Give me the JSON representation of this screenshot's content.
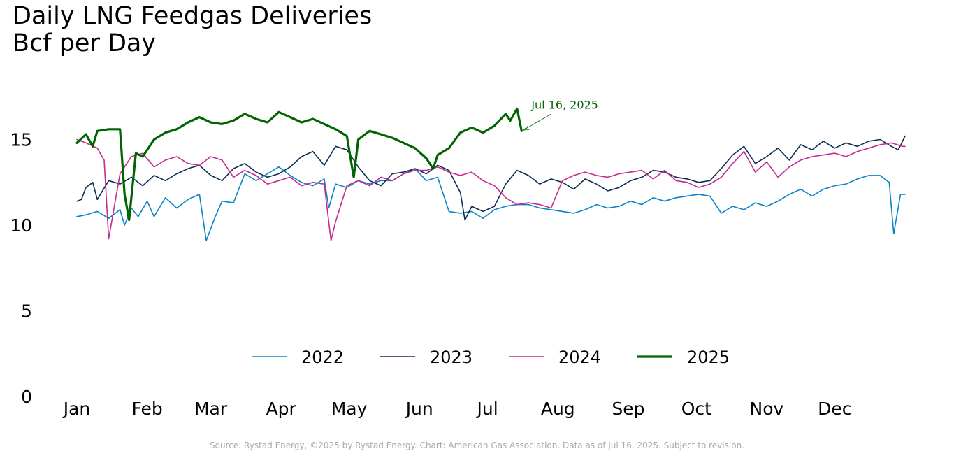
{
  "chart_data": {
    "type": "line",
    "title": "Daily LNG Feedgas Deliveries",
    "subtitle": "Bcf per Day",
    "xlabel": "",
    "ylabel": "",
    "ylim": [
      0,
      18
    ],
    "yticks": [
      0,
      5,
      10,
      15
    ],
    "x_unit": "day of year",
    "xlim": [
      1,
      366
    ],
    "months": [
      "Jan",
      "Feb",
      "Mar",
      "Apr",
      "May",
      "Jun",
      "Jul",
      "Aug",
      "Sep",
      "Oct",
      "Nov",
      "Dec"
    ],
    "month_start_days": [
      1,
      32,
      60,
      91,
      121,
      152,
      182,
      213,
      244,
      274,
      305,
      335
    ],
    "grid": false,
    "legend_position": "bottom-center",
    "annotation": {
      "text": "Jul 16, 2025",
      "day": 197,
      "value": 15.5
    },
    "series": [
      {
        "name": "2022",
        "color": "#0b84c6",
        "width": 1.6,
        "x": [
          1,
          5,
          10,
          15,
          20,
          22,
          25,
          28,
          32,
          35,
          40,
          45,
          50,
          55,
          58,
          62,
          65,
          70,
          75,
          80,
          85,
          90,
          95,
          100,
          105,
          110,
          112,
          115,
          120,
          125,
          130,
          135,
          140,
          145,
          150,
          155,
          160,
          165,
          170,
          175,
          180,
          185,
          190,
          195,
          200,
          205,
          210,
          215,
          220,
          225,
          230,
          235,
          240,
          245,
          250,
          255,
          260,
          265,
          270,
          275,
          280,
          285,
          290,
          295,
          300,
          305,
          310,
          315,
          320,
          325,
          330,
          335,
          340,
          345,
          350,
          355,
          359,
          361,
          364,
          366
        ],
        "values": [
          10.5,
          10.6,
          10.8,
          10.4,
          10.9,
          10.0,
          11.0,
          10.5,
          11.4,
          10.5,
          11.6,
          11.0,
          11.5,
          11.8,
          9.1,
          10.5,
          11.4,
          11.3,
          13.0,
          12.6,
          13.0,
          13.4,
          12.9,
          12.5,
          12.3,
          12.7,
          11.0,
          12.4,
          12.2,
          12.6,
          12.4,
          12.6,
          12.6,
          13.0,
          13.3,
          12.6,
          12.8,
          10.8,
          10.7,
          10.8,
          10.4,
          10.9,
          11.1,
          11.2,
          11.2,
          11.0,
          10.9,
          10.8,
          10.7,
          10.9,
          11.2,
          11.0,
          11.1,
          11.4,
          11.2,
          11.6,
          11.4,
          11.6,
          11.7,
          11.8,
          11.7,
          10.7,
          11.1,
          10.9,
          11.3,
          11.1,
          11.4,
          11.8,
          12.1,
          11.7,
          12.1,
          12.3,
          12.4,
          12.7,
          12.9,
          12.9,
          12.5,
          9.5,
          11.8,
          11.8
        ]
      },
      {
        "name": "2023",
        "color": "#0d2d52",
        "width": 1.6,
        "x": [
          1,
          3,
          5,
          8,
          10,
          15,
          20,
          25,
          30,
          35,
          40,
          45,
          50,
          55,
          60,
          65,
          70,
          75,
          80,
          85,
          90,
          95,
          100,
          105,
          110,
          115,
          120,
          125,
          130,
          135,
          140,
          145,
          150,
          155,
          160,
          165,
          170,
          172,
          175,
          180,
          185,
          190,
          195,
          200,
          205,
          210,
          215,
          220,
          225,
          230,
          235,
          240,
          245,
          250,
          255,
          260,
          265,
          270,
          275,
          280,
          285,
          290,
          295,
          300,
          305,
          310,
          315,
          320,
          325,
          330,
          335,
          340,
          345,
          350,
          355,
          360,
          363,
          366
        ],
        "values": [
          11.4,
          11.5,
          12.2,
          12.5,
          11.5,
          12.6,
          12.4,
          12.8,
          12.3,
          12.9,
          12.6,
          13.0,
          13.3,
          13.5,
          12.9,
          12.6,
          13.3,
          13.6,
          13.1,
          12.8,
          13.0,
          13.4,
          14.0,
          14.3,
          13.5,
          14.6,
          14.4,
          13.4,
          12.6,
          12.3,
          13.0,
          13.1,
          13.3,
          13.0,
          13.5,
          13.2,
          11.9,
          10.3,
          11.1,
          10.8,
          11.1,
          12.4,
          13.2,
          12.9,
          12.4,
          12.7,
          12.5,
          12.1,
          12.7,
          12.4,
          12.0,
          12.2,
          12.6,
          12.8,
          13.2,
          13.1,
          12.8,
          12.7,
          12.5,
          12.6,
          13.3,
          14.1,
          14.6,
          13.6,
          14.0,
          14.5,
          13.8,
          14.7,
          14.4,
          14.9,
          14.5,
          14.8,
          14.6,
          14.9,
          15.0,
          14.6,
          14.4,
          15.2
        ]
      },
      {
        "name": "2024",
        "color": "#c42b8f",
        "width": 1.6,
        "x": [
          1,
          5,
          10,
          13,
          15,
          20,
          25,
          30,
          35,
          40,
          45,
          50,
          55,
          60,
          65,
          70,
          75,
          80,
          85,
          90,
          95,
          100,
          105,
          110,
          113,
          115,
          120,
          125,
          130,
          135,
          140,
          145,
          150,
          155,
          160,
          165,
          170,
          175,
          180,
          185,
          190,
          195,
          200,
          205,
          210,
          215,
          220,
          225,
          230,
          235,
          240,
          245,
          250,
          255,
          260,
          265,
          270,
          275,
          280,
          285,
          290,
          295,
          300,
          305,
          310,
          315,
          320,
          325,
          330,
          335,
          340,
          345,
          350,
          355,
          360,
          365,
          366
        ],
        "values": [
          15.0,
          14.8,
          14.5,
          13.8,
          9.2,
          13.0,
          14.0,
          14.2,
          13.4,
          13.8,
          14.0,
          13.6,
          13.5,
          14.0,
          13.8,
          12.8,
          13.2,
          12.9,
          12.4,
          12.6,
          12.8,
          12.3,
          12.5,
          12.4,
          9.1,
          10.2,
          12.3,
          12.6,
          12.3,
          12.8,
          12.6,
          13.0,
          13.2,
          13.2,
          13.4,
          13.1,
          12.9,
          13.1,
          12.6,
          12.3,
          11.6,
          11.2,
          11.3,
          11.2,
          11.0,
          12.6,
          12.9,
          13.1,
          12.9,
          12.8,
          13.0,
          13.1,
          13.2,
          12.7,
          13.2,
          12.6,
          12.5,
          12.2,
          12.4,
          12.8,
          13.6,
          14.3,
          13.1,
          13.7,
          12.8,
          13.4,
          13.8,
          14.0,
          14.1,
          14.2,
          14.0,
          14.3,
          14.5,
          14.7,
          14.8,
          14.6,
          14.6
        ]
      },
      {
        "name": "2025",
        "color": "#006400",
        "width": 3.2,
        "x": [
          1,
          5,
          8,
          10,
          15,
          20,
          22,
          24,
          27,
          30,
          35,
          40,
          45,
          50,
          55,
          60,
          65,
          70,
          75,
          80,
          85,
          90,
          95,
          100,
          105,
          110,
          115,
          120,
          123,
          125,
          130,
          135,
          140,
          145,
          150,
          155,
          158,
          160,
          165,
          170,
          175,
          180,
          185,
          190,
          192,
          195,
          197
        ],
        "values": [
          14.8,
          15.3,
          14.6,
          15.5,
          15.6,
          15.6,
          11.8,
          10.3,
          14.2,
          14.0,
          15.0,
          15.4,
          15.6,
          16.0,
          16.3,
          16.0,
          15.9,
          16.1,
          16.5,
          16.2,
          16.0,
          16.6,
          16.3,
          16.0,
          16.2,
          15.9,
          15.6,
          15.2,
          12.8,
          15.0,
          15.5,
          15.3,
          15.1,
          14.8,
          14.5,
          13.9,
          13.3,
          14.1,
          14.5,
          15.4,
          15.7,
          15.4,
          15.8,
          16.5,
          16.1,
          16.8,
          15.5
        ]
      }
    ]
  },
  "footer": {
    "source": "Source: Rystad Energy, ©2025 by Rystad Energy. Chart: American Gas Association. Data as of Jul 16, 2025. Subject to revision."
  }
}
